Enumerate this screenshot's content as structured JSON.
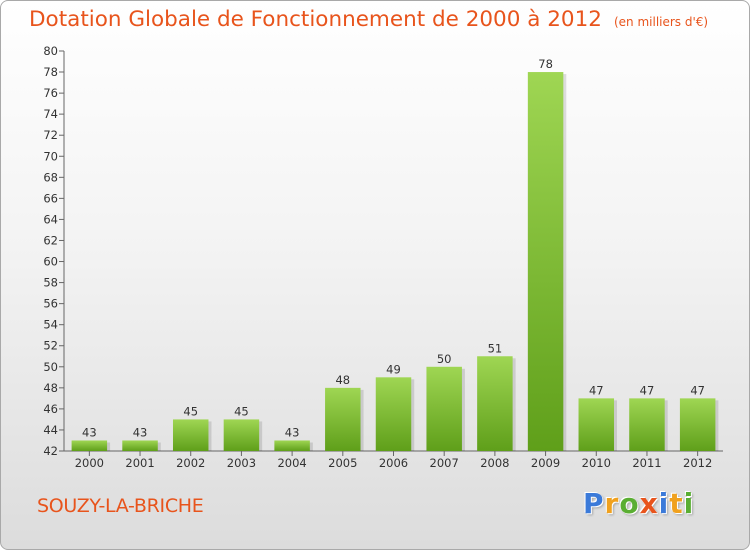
{
  "title": "Dotation Globale de Fonctionnement de 2000 à 2012",
  "subtitle": "(en milliers d'€)",
  "commune": "SOUZY-LA-BRICHE",
  "logo": {
    "letters": [
      "P",
      "r",
      "o",
      "x",
      "i",
      "t",
      "i"
    ],
    "colors": [
      "#3b7ad9",
      "#f0a11e",
      "#5aae32",
      "#e8541c",
      "#3b7ad9",
      "#f0a11e",
      "#5aae32"
    ]
  },
  "colors": {
    "accent": "#e8541c",
    "bar_top": "#9fd653",
    "bar_bottom": "#5f9f1a"
  },
  "chart_data": {
    "type": "bar",
    "categories": [
      "2000",
      "2001",
      "2002",
      "2003",
      "2004",
      "2005",
      "2006",
      "2007",
      "2008",
      "2009",
      "2010",
      "2011",
      "2012"
    ],
    "values": [
      43,
      43,
      45,
      45,
      43,
      48,
      49,
      50,
      51,
      78,
      47,
      47,
      47
    ],
    "ylim": [
      42,
      80
    ],
    "ytick_step": 2,
    "grid": false
  }
}
